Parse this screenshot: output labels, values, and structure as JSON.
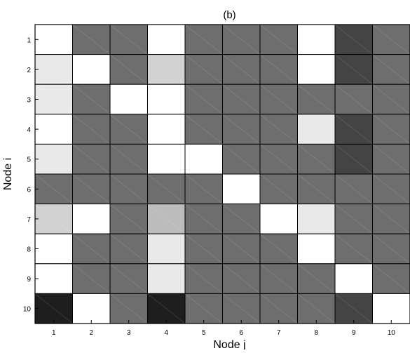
{
  "chart_data": {
    "type": "heatmap",
    "title": "(b)",
    "xlabel": "Node j",
    "ylabel": "Node i",
    "x_categories": [
      "1",
      "2",
      "3",
      "4",
      "5",
      "6",
      "7",
      "8",
      "9",
      "10"
    ],
    "y_categories": [
      "1",
      "2",
      "3",
      "4",
      "5",
      "6",
      "7",
      "8",
      "9",
      "10"
    ],
    "cell_colors": [
      [
        "#ffffff",
        "#6e6e6e",
        "#6e6e6e",
        "#ffffff",
        "#6e6e6e",
        "#6e6e6e",
        "#6e6e6e",
        "#ffffff",
        "#444444",
        "#6e6e6e"
      ],
      [
        "#e9e9e9",
        "#ffffff",
        "#6e6e6e",
        "#d2d2d2",
        "#6e6e6e",
        "#6e6e6e",
        "#6e6e6e",
        "#ffffff",
        "#444444",
        "#6e6e6e"
      ],
      [
        "#e9e9e9",
        "#6e6e6e",
        "#ffffff",
        "#ffffff",
        "#6e6e6e",
        "#6e6e6e",
        "#6e6e6e",
        "#6e6e6e",
        "#6e6e6e",
        "#6e6e6e"
      ],
      [
        "#ffffff",
        "#6e6e6e",
        "#6e6e6e",
        "#ffffff",
        "#6e6e6e",
        "#6e6e6e",
        "#6e6e6e",
        "#e9e9e9",
        "#444444",
        "#6e6e6e"
      ],
      [
        "#e9e9e9",
        "#6e6e6e",
        "#6e6e6e",
        "#ffffff",
        "#ffffff",
        "#6e6e6e",
        "#6e6e6e",
        "#6e6e6e",
        "#444444",
        "#6e6e6e"
      ],
      [
        "#6e6e6e",
        "#6e6e6e",
        "#6e6e6e",
        "#6e6e6e",
        "#6e6e6e",
        "#ffffff",
        "#6e6e6e",
        "#6e6e6e",
        "#6e6e6e",
        "#6e6e6e"
      ],
      [
        "#d2d2d2",
        "#ffffff",
        "#6e6e6e",
        "#bcbcbc",
        "#6e6e6e",
        "#6e6e6e",
        "#ffffff",
        "#e9e9e9",
        "#6e6e6e",
        "#6e6e6e"
      ],
      [
        "#ffffff",
        "#6e6e6e",
        "#6e6e6e",
        "#e9e9e9",
        "#6e6e6e",
        "#6e6e6e",
        "#6e6e6e",
        "#ffffff",
        "#6e6e6e",
        "#6e6e6e"
      ],
      [
        "#ffffff",
        "#6e6e6e",
        "#6e6e6e",
        "#e9e9e9",
        "#6e6e6e",
        "#6e6e6e",
        "#6e6e6e",
        "#6e6e6e",
        "#ffffff",
        "#6e6e6e"
      ],
      [
        "#1e1e1e",
        "#ffffff",
        "#6e6e6e",
        "#1e1e1e",
        "#6e6e6e",
        "#6e6e6e",
        "#6e6e6e",
        "#6e6e6e",
        "#444444",
        "#ffffff"
      ]
    ],
    "grid": true,
    "legend": "none"
  }
}
